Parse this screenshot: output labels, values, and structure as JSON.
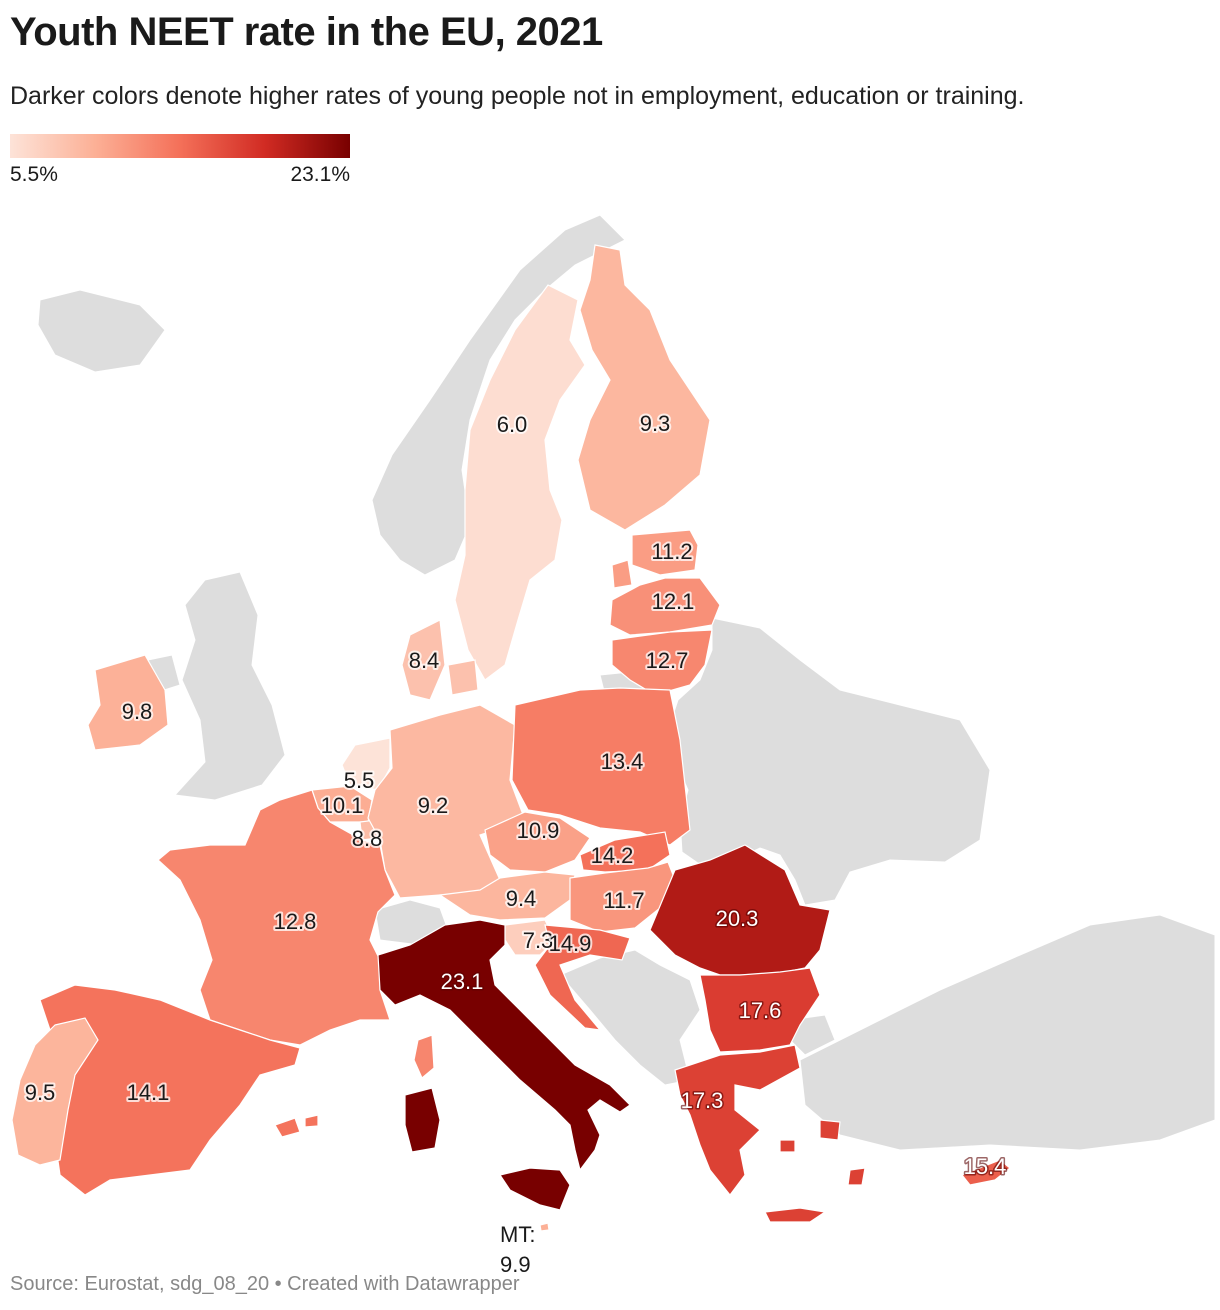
{
  "title": "Youth NEET rate in the EU, 2021",
  "subtitle": "Darker colors denote higher rates of young people not in employment, education or training.",
  "legend": {
    "min_label": "5.5%",
    "max_label": "23.1%",
    "min": 5.5,
    "max": 23.1,
    "colors": [
      "#fde3d8",
      "#fcb096",
      "#f47059",
      "#d12b23",
      "#780000"
    ]
  },
  "non_eu_color": "#dddddd",
  "map_data": [
    {
      "country": "Sweden",
      "value": 6.0,
      "label": "6.0"
    },
    {
      "country": "Finland",
      "value": 9.3,
      "label": "9.3"
    },
    {
      "country": "Estonia",
      "value": 11.2,
      "label": "11.2"
    },
    {
      "country": "Latvia",
      "value": 12.1,
      "label": "12.1"
    },
    {
      "country": "Lithuania",
      "value": 12.7,
      "label": "12.7"
    },
    {
      "country": "Denmark",
      "value": 8.4,
      "label": "8.4"
    },
    {
      "country": "Ireland",
      "value": 9.8,
      "label": "9.8"
    },
    {
      "country": "Netherlands",
      "value": 5.5,
      "label": "5.5"
    },
    {
      "country": "Belgium",
      "value": 10.1,
      "label": "10.1"
    },
    {
      "country": "Luxembourg",
      "value": 8.8,
      "label": "8.8"
    },
    {
      "country": "Germany",
      "value": 9.2,
      "label": "9.2"
    },
    {
      "country": "Poland",
      "value": 13.4,
      "label": "13.4"
    },
    {
      "country": "Czechia",
      "value": 10.9,
      "label": "10.9"
    },
    {
      "country": "Slovakia",
      "value": 14.2,
      "label": "14.2"
    },
    {
      "country": "Austria",
      "value": 9.4,
      "label": "9.4"
    },
    {
      "country": "Hungary",
      "value": 11.7,
      "label": "11.7"
    },
    {
      "country": "Slovenia",
      "value": 7.3,
      "label": "7.3"
    },
    {
      "country": "Croatia",
      "value": 14.9,
      "label": "14.9"
    },
    {
      "country": "Romania",
      "value": 20.3,
      "label": "20.3"
    },
    {
      "country": "Bulgaria",
      "value": 17.6,
      "label": "17.6"
    },
    {
      "country": "Greece",
      "value": 17.3,
      "label": "17.3"
    },
    {
      "country": "Cyprus",
      "value": 15.4,
      "label": "15.4"
    },
    {
      "country": "France",
      "value": 12.8,
      "label": "12.8"
    },
    {
      "country": "Italy",
      "value": 23.1,
      "label": "23.1"
    },
    {
      "country": "Spain",
      "value": 14.1,
      "label": "14.1"
    },
    {
      "country": "Portugal",
      "value": 9.5,
      "label": "9.5"
    },
    {
      "country": "Malta",
      "value": 9.9,
      "label": "9.9"
    }
  ],
  "malta_note": {
    "prefix": "MT:",
    "value": "9.9"
  },
  "source": "Source: Eurostat, sdg_08_20 • Created with Datawrapper"
}
